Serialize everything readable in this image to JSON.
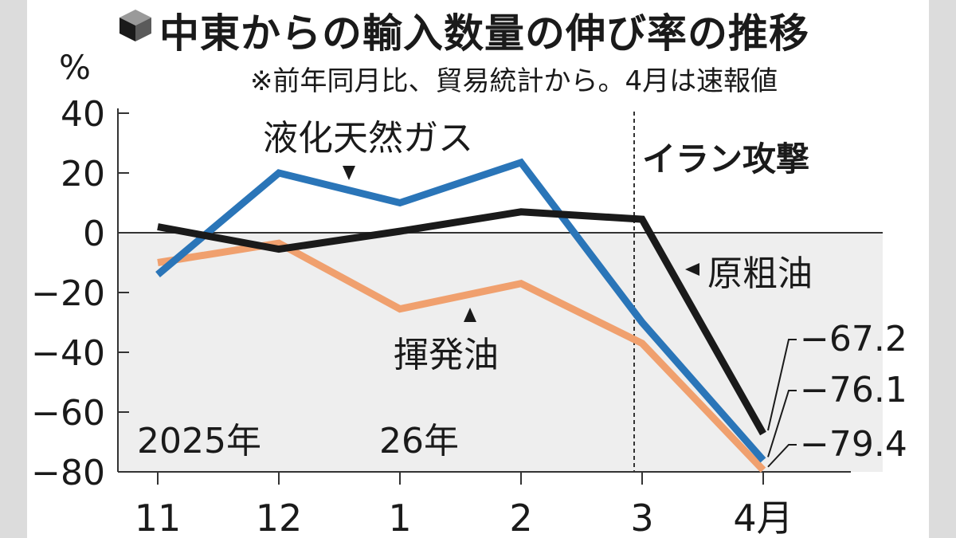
{
  "title": "中東からの輸入数量の伸び率の推移",
  "subtitle": "※前年同月比、貿易統計から。4月は速報値",
  "unit": "%",
  "year_labels": [
    "2025年",
    "26年"
  ],
  "event_label": "イラン攻撃",
  "colors": {
    "lng": "#2a75b8",
    "crude": "#1a1a1a",
    "volatile": "#f0a06e",
    "negative_shade": "#eeeeee"
  },
  "chart_data": {
    "type": "line",
    "x": [
      "11",
      "12",
      "1",
      "2",
      "3",
      "4月"
    ],
    "ylim": [
      -80,
      40
    ],
    "yticks": [
      "40",
      "20",
      "0",
      "−20",
      "−40",
      "−60",
      "−80"
    ],
    "ytick_values": [
      40,
      20,
      0,
      -20,
      -40,
      -60,
      -80
    ],
    "event_x": "3",
    "series": [
      {
        "name": "液化天然ガス",
        "values": [
          -14,
          20,
          10,
          23.5,
          -30,
          -76.1
        ],
        "end_label": "−76.1"
      },
      {
        "name": "原粗油",
        "values": [
          2,
          -5.5,
          0.5,
          7,
          4.5,
          -67.2
        ],
        "end_label": "−67.2"
      },
      {
        "name": "揮発油",
        "values": [
          -10,
          -3.5,
          -25.5,
          -17,
          -37,
          -79.4
        ],
        "end_label": "−79.4"
      }
    ]
  }
}
